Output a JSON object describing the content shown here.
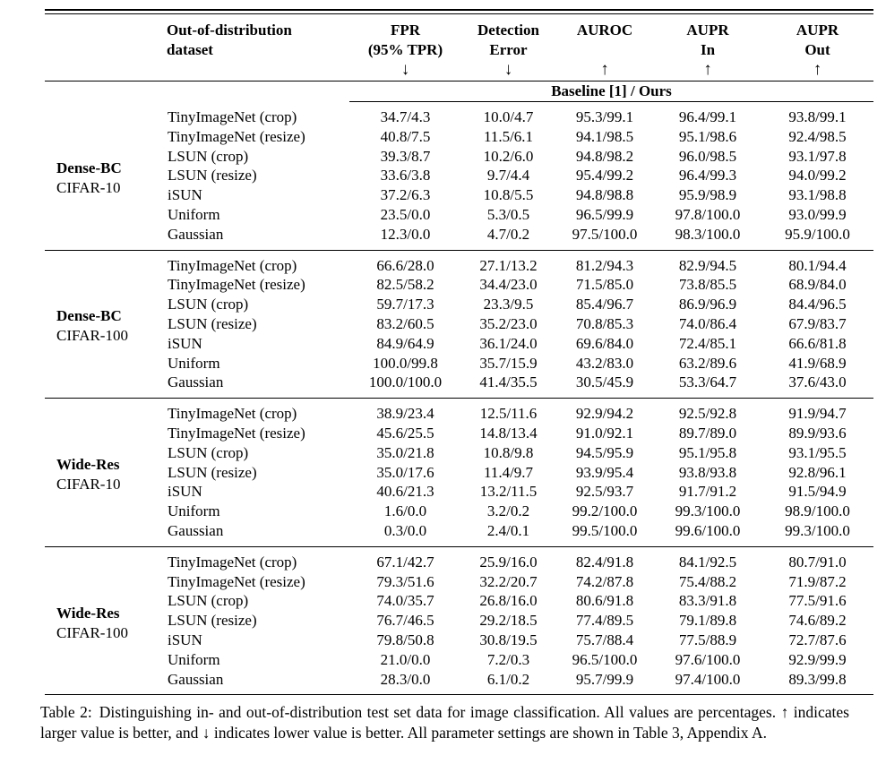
{
  "meta": {
    "background_color": "#ffffff",
    "text_color": "#000000",
    "rule_color": "#000000"
  },
  "table": {
    "columns": [
      {
        "line1": "Out-of-distribution",
        "line2": "dataset",
        "arrow": ""
      },
      {
        "line1": "FPR",
        "line2": "(95% TPR)",
        "arrow": "↓"
      },
      {
        "line1": "Detection",
        "line2": "Error",
        "arrow": "↓"
      },
      {
        "line1": "AUROC",
        "line2": "",
        "arrow": "↑"
      },
      {
        "line1": "AUPR",
        "line2": "In",
        "arrow": "↑"
      },
      {
        "line1": "AUPR",
        "line2": "Out",
        "arrow": "↑"
      }
    ],
    "span_header": "Baseline [1] / Ours",
    "groups": [
      {
        "model": "Dense-BC",
        "dataset": "CIFAR-10",
        "rows": [
          {
            "ood": "TinyImageNet (crop)",
            "values": [
              "34.7/4.3",
              "10.0/4.7",
              "95.3/99.1",
              "96.4/99.1",
              "93.8/99.1"
            ]
          },
          {
            "ood": "TinyImageNet (resize)",
            "values": [
              "40.8/7.5",
              "11.5/6.1",
              "94.1/98.5",
              "95.1/98.6",
              "92.4/98.5"
            ]
          },
          {
            "ood": "LSUN (crop)",
            "values": [
              "39.3/8.7",
              "10.2/6.0",
              "94.8/98.2",
              "96.0/98.5",
              "93.1/97.8"
            ]
          },
          {
            "ood": "LSUN (resize)",
            "values": [
              "33.6/3.8",
              "9.7/4.4",
              "95.4/99.2",
              "96.4/99.3",
              "94.0/99.2"
            ]
          },
          {
            "ood": "iSUN",
            "values": [
              "37.2/6.3",
              "10.8/5.5",
              "94.8/98.8",
              "95.9/98.9",
              "93.1/98.8"
            ]
          },
          {
            "ood": "Uniform",
            "values": [
              "23.5/0.0",
              "5.3/0.5",
              "96.5/99.9",
              "97.8/100.0",
              "93.0/99.9"
            ]
          },
          {
            "ood": "Gaussian",
            "values": [
              "12.3/0.0",
              "4.7/0.2",
              "97.5/100.0",
              "98.3/100.0",
              "95.9/100.0"
            ]
          }
        ]
      },
      {
        "model": "Dense-BC",
        "dataset": "CIFAR-100",
        "rows": [
          {
            "ood": "TinyImageNet (crop)",
            "values": [
              "66.6/28.0",
              "27.1/13.2",
              "81.2/94.3",
              "82.9/94.5",
              "80.1/94.4"
            ]
          },
          {
            "ood": "TinyImageNet (resize)",
            "values": [
              "82.5/58.2",
              "34.4/23.0",
              "71.5/85.0",
              "73.8/85.5",
              "68.9/84.0"
            ]
          },
          {
            "ood": "LSUN (crop)",
            "values": [
              "59.7/17.3",
              "23.3/9.5",
              "85.4/96.7",
              "86.9/96.9",
              "84.4/96.5"
            ]
          },
          {
            "ood": "LSUN (resize)",
            "values": [
              "83.2/60.5",
              "35.2/23.0",
              "70.8/85.3",
              "74.0/86.4",
              "67.9/83.7"
            ]
          },
          {
            "ood": "iSUN",
            "values": [
              "84.9/64.9",
              "36.1/24.0",
              "69.6/84.0",
              "72.4/85.1",
              "66.6/81.8"
            ]
          },
          {
            "ood": "Uniform",
            "values": [
              "100.0/99.8",
              "35.7/15.9",
              "43.2/83.0",
              "63.2/89.6",
              "41.9/68.9"
            ]
          },
          {
            "ood": "Gaussian",
            "values": [
              "100.0/100.0",
              "41.4/35.5",
              "30.5/45.9",
              "53.3/64.7",
              "37.6/43.0"
            ]
          }
        ]
      },
      {
        "model": "Wide-Res",
        "dataset": "CIFAR-10",
        "rows": [
          {
            "ood": "TinyImageNet (crop)",
            "values": [
              "38.9/23.4",
              "12.5/11.6",
              "92.9/94.2",
              "92.5/92.8",
              "91.9/94.7"
            ]
          },
          {
            "ood": "TinyImageNet (resize)",
            "values": [
              "45.6/25.5",
              "14.8/13.4",
              "91.0/92.1",
              "89.7/89.0",
              "89.9/93.6"
            ]
          },
          {
            "ood": "LSUN (crop)",
            "values": [
              "35.0/21.8",
              "10.8/9.8",
              "94.5/95.9",
              "95.1/95.8",
              "93.1/95.5"
            ]
          },
          {
            "ood": "LSUN (resize)",
            "values": [
              "35.0/17.6",
              "11.4/9.7",
              "93.9/95.4",
              "93.8/93.8",
              "92.8/96.1"
            ]
          },
          {
            "ood": "iSUN",
            "values": [
              "40.6/21.3",
              "13.2/11.5",
              "92.5/93.7",
              "91.7/91.2",
              "91.5/94.9"
            ]
          },
          {
            "ood": "Uniform",
            "values": [
              "1.6/0.0",
              "3.2/0.2",
              "99.2/100.0",
              "99.3/100.0",
              "98.9/100.0"
            ]
          },
          {
            "ood": "Gaussian",
            "values": [
              "0.3/0.0",
              "2.4/0.1",
              "99.5/100.0",
              "99.6/100.0",
              "99.3/100.0"
            ]
          }
        ]
      },
      {
        "model": "Wide-Res",
        "dataset": "CIFAR-100",
        "rows": [
          {
            "ood": "TinyImageNet (crop)",
            "values": [
              "67.1/42.7",
              "25.9/16.0",
              "82.4/91.8",
              "84.1/92.5",
              "80.7/91.0"
            ]
          },
          {
            "ood": "TinyImageNet (resize)",
            "values": [
              "79.3/51.6",
              "32.2/20.7",
              "74.2/87.8",
              "75.4/88.2",
              "71.9/87.2"
            ]
          },
          {
            "ood": "LSUN (crop)",
            "values": [
              "74.0/35.7",
              "26.8/16.0",
              "80.6/91.8",
              "83.3/91.8",
              "77.5/91.6"
            ]
          },
          {
            "ood": "LSUN (resize)",
            "values": [
              "76.7/46.5",
              "29.2/18.5",
              "77.4/89.5",
              "79.1/89.8",
              "74.6/89.2"
            ]
          },
          {
            "ood": "iSUN",
            "values": [
              "79.8/50.8",
              "30.8/19.5",
              "75.7/88.4",
              "77.5/88.9",
              "72.7/87.6"
            ]
          },
          {
            "ood": "Uniform",
            "values": [
              "21.0/0.0",
              "7.2/0.3",
              "96.5/100.0",
              "97.6/100.0",
              "92.9/99.9"
            ]
          },
          {
            "ood": "Gaussian",
            "values": [
              "28.3/0.0",
              "6.1/0.2",
              "95.7/99.9",
              "97.4/100.0",
              "89.3/99.8"
            ]
          }
        ]
      }
    ]
  },
  "caption": {
    "label": "Table 2:",
    "text": "Distinguishing in- and out-of-distribution test set data for image classification.  All values are percentages. ↑ indicates larger value is better, and ↓ indicates lower value is better. All parameter settings are shown in Table 3, Appendix A."
  }
}
